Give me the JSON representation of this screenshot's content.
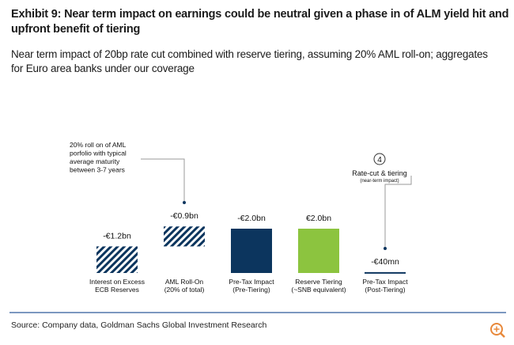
{
  "chart_data": {
    "type": "waterfall",
    "title": "Exhibit 9: Near term impact on earnings could be neutral given a phase in of ALM yield hit and upfront benefit of tiering",
    "subtitle": "Near term impact of 20bp rate cut combined with reserve tiering, assuming 20% AML roll-on; aggregates for Euro area banks under our coverage",
    "categories": [
      [
        "Interest on Excess",
        "ECB Reserves"
      ],
      [
        "AML Roll-On",
        "(20% of total)"
      ],
      [
        "Pre-Tax Impact",
        "(Pre-Tiering)"
      ],
      [
        "Reserve Tiering",
        "(~SNB equivalent)"
      ],
      [
        "Pre-Tax Impact",
        "(Post-Tiering)"
      ]
    ],
    "values": [
      -1.2,
      -0.9,
      -2.0,
      2.0,
      -0.04
    ],
    "value_labels": [
      "-€1.2bn",
      "-€0.9bn",
      "-€2.0bn",
      "€2.0bn",
      "-€40mn"
    ],
    "colors": [
      "hatch",
      "hatch",
      "#0c355e",
      "#8cc43f",
      "#0c355e"
    ],
    "totals": [
      2,
      4
    ],
    "annotations": [
      {
        "lines": [
          "20% roll on of AML",
          "porfolio with typical",
          "average maturity",
          "between 3-7 years"
        ]
      },
      {
        "number": "4",
        "lines": [
          "Rate-cut & tiering"
        ],
        "note": "(near-term impact)"
      }
    ],
    "source": "Source: Company data, Goldman Sachs Global Investment Research"
  }
}
